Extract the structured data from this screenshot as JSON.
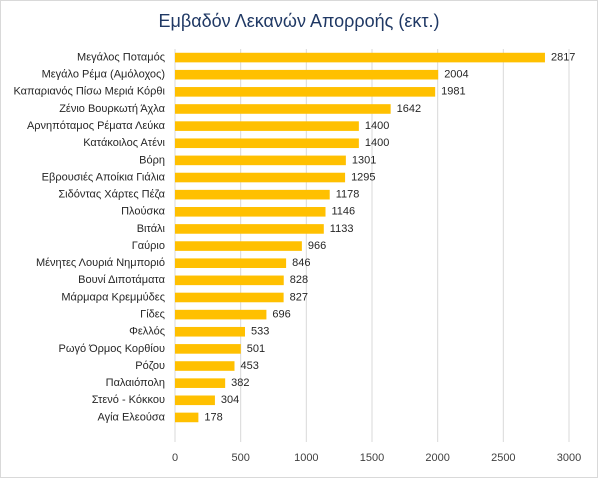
{
  "chart_data": {
    "type": "bar",
    "title": "Εμβαδόν Λεκανών Απορροής (εκτ.)",
    "categories": [
      "Μεγάλος Ποταμός",
      "Μεγάλο Ρέμα (Αμόλοχος)",
      "Καπαριανός Πίσω Μεριά Κόρθι",
      "Ζένιο Βουρκωτή Άχλα",
      "Αρνηπόταμος Ρέματα Λεύκα",
      "Κατάκοιλος Ατένι",
      "Βόρη",
      "Εβρουσιές Αποίκια Γιάλια",
      "Σιδόντας Χάρτες Πέζα",
      "Πλούσκα",
      "Βιτάλι",
      "Γαύριο",
      "Μένητες Λουριά Νημποριό",
      "Βουνί Διποτάματα",
      "Μάρμαρα Κρεμμύδες",
      "Γίδες",
      "Φελλός",
      "Ρωγό Όρμος Κορθίου",
      "Ρόζου",
      "Παλαιόπολη",
      "Στενό - Κόκκου",
      "Αγία Ελεούσα"
    ],
    "values": [
      2817,
      2004,
      1981,
      1642,
      1400,
      1400,
      1301,
      1295,
      1178,
      1146,
      1133,
      966,
      846,
      828,
      827,
      696,
      533,
      501,
      453,
      382,
      304,
      178
    ],
    "color": "#ffc000",
    "xlim": [
      0,
      3000
    ],
    "xticks": [
      0,
      500,
      1000,
      1500,
      2000,
      2500,
      3000
    ],
    "grid": true
  }
}
